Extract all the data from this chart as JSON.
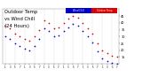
{
  "title": "Outdoor Temp",
  "title2": "vs Wind Chill",
  "title3": "(24 Hours)",
  "title_fontsize": 3.8,
  "bg_color": "#ffffff",
  "plot_bg_color": "#ffffff",
  "grid_color": "#bbbbbb",
  "temp_color": "#dd0000",
  "wind_color": "#0000cc",
  "legend_label_temp": "Outdoor Temp",
  "legend_label_wind": "Wind Chill",
  "ylim": [
    10,
    50
  ],
  "yticks": [
    15,
    20,
    25,
    30,
    35,
    40,
    45
  ],
  "ytick_labels": [
    "15",
    "20",
    "25",
    "30",
    "35",
    "40",
    "45"
  ],
  "hours": [
    0,
    1,
    2,
    3,
    4,
    5,
    6,
    7,
    8,
    9,
    10,
    11,
    12,
    13,
    14,
    15,
    16,
    17,
    18,
    19,
    20,
    21,
    22,
    23
  ],
  "xtick_labels": [
    "1",
    "3",
    "5",
    "7",
    "1",
    "3",
    "5",
    "7",
    "1",
    "3",
    "5",
    "7",
    "1",
    "3",
    "5",
    "7",
    "1",
    "3",
    "5",
    "7",
    "1",
    "3",
    "5",
    "7"
  ],
  "temp_values": [
    38,
    36,
    32,
    30,
    28,
    27,
    30,
    35,
    42,
    40,
    36,
    37,
    40,
    43,
    45,
    44,
    40,
    36,
    32,
    25,
    20,
    18,
    16,
    15
  ],
  "wind_values": [
    30,
    28,
    25,
    23,
    21,
    20,
    23,
    28,
    36,
    34,
    30,
    31,
    34,
    37,
    39,
    38,
    34,
    30,
    26,
    19,
    14,
    12,
    11,
    10
  ]
}
